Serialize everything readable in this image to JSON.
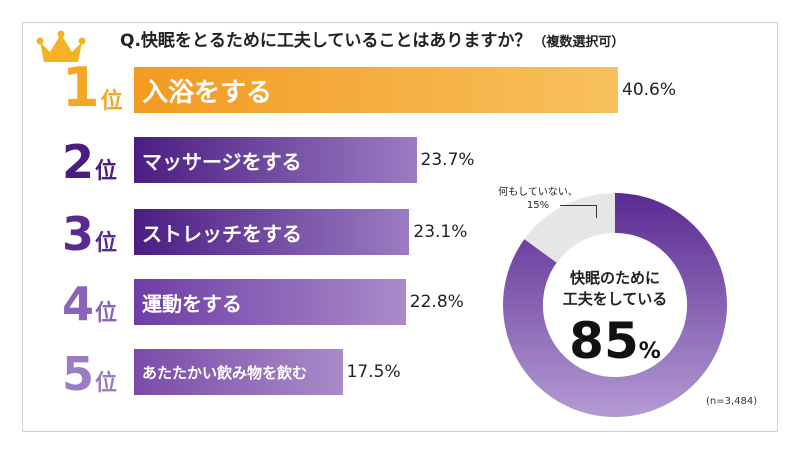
{
  "title": "Q.快眠をとるために工夫していることはありますか？",
  "title_note": "（複数選択可）",
  "rank_suffix": "位",
  "colors": {
    "orange": "#f5a623",
    "purple_dark": "#4b1d82",
    "purple_mid": "#7a4ba8",
    "purple_light": "#a98bc9",
    "gray": "#e6e6e6"
  },
  "chart_data": [
    {
      "type": "bar",
      "categories": [
        "入浴をする",
        "マッサージをする",
        "ストレッチをする",
        "運動をする",
        "あたたかい飲み物を飲む"
      ],
      "ranks": [
        "1",
        "2",
        "3",
        "4",
        "5"
      ],
      "values": [
        40.6,
        23.7,
        23.1,
        22.8,
        17.5
      ],
      "value_labels": [
        "40.6%",
        "23.7%",
        "23.1%",
        "22.8%",
        "17.5%"
      ],
      "unit": "%"
    },
    {
      "type": "pie",
      "slices": [
        {
          "label": "快眠のために工夫をしている",
          "value": 85
        },
        {
          "label": "何もしていない",
          "value": 15,
          "value_label": "15%"
        }
      ],
      "center_label_line1": "快眠のために",
      "center_label_line2": "工夫をしている",
      "center_value": "85",
      "center_unit": "%",
      "sample_note": "(n=3,484)"
    }
  ]
}
